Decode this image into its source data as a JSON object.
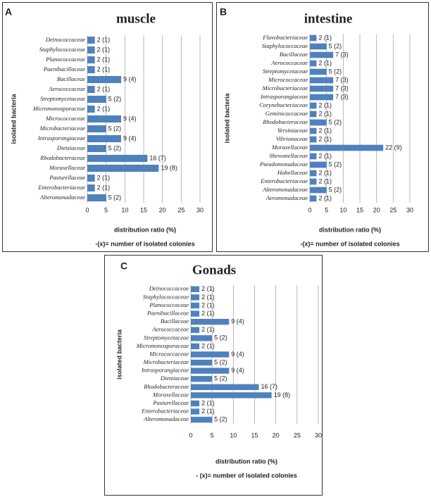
{
  "chart_data": [
    {
      "type": "hbar",
      "panel": "A",
      "title": "muscle",
      "ylabel": "isolated bacteria",
      "xlabel": "distribution ratio (%)",
      "footnote": "-(x)= number of isolated colonies",
      "categories": [
        "Deinococcaceae",
        "Staphylococcaceae",
        "Planococcaceae",
        "Paenibacillaceae",
        "Bacillaceae",
        "Aerococcaceae",
        "Streptomycetaceae",
        "Micromonosporaceae",
        "Micrococcaceae",
        "Microbacteriaceae",
        "Intrasporangiaceae",
        "Dietziaceae",
        "Rhodobacteraceae",
        "Moraxellaceae",
        "Pasturellaceae",
        "Enterobacteriaceae",
        "Alteromonadaceae"
      ],
      "values": [
        2,
        2,
        2,
        2,
        9,
        2,
        5,
        2,
        9,
        5,
        9,
        5,
        16,
        19,
        2,
        2,
        5
      ],
      "value_labels": [
        "2 (1)",
        "2 (1)",
        "2 (1)",
        "2 (1)",
        "9 (4)",
        "2 (1)",
        "5 (2)",
        "2 (1)",
        "9 (4)",
        "5 (2)",
        "9 (4)",
        "5 (2)",
        "16 (7)",
        "19 (8)",
        "2 (1)",
        "2 (1)",
        "5 (2)"
      ],
      "color": "#4f81bd",
      "xlim": [
        0,
        30
      ],
      "xticks": [
        0,
        5,
        10,
        15,
        20,
        25,
        30
      ],
      "grid": true
    },
    {
      "type": "hbar",
      "panel": "B",
      "title": "intestine",
      "ylabel": "isolated bacteria",
      "xlabel": "distribution ratio (%)",
      "footnote": "-(x)= number of isolated colonies",
      "categories": [
        "Flavobacteriaceae",
        "Staphylococcaceae",
        "Bacillaceae",
        "Aerococcaceae",
        "Streptomycetaceae",
        "Micrococcaceae",
        "Microbacteriaceae",
        "Intrasporangiaceae",
        "Corynebacteriaceae",
        "Geminicoccaceae",
        "Rhodobacteraceae",
        "Yersiniaceae",
        "Vibrionaceae",
        "Moraxellaceae",
        "Shewanellaceae",
        "Pseudomonadaceae",
        "Hahellaceae",
        "Enterobacteriaceae",
        "Alteromonadaceae",
        "Aeromonadaceae"
      ],
      "values": [
        2,
        5,
        7,
        2,
        5,
        7,
        7,
        7,
        2,
        2,
        5,
        2,
        2,
        22,
        2,
        5,
        2,
        2,
        5,
        2
      ],
      "value_labels": [
        "2 (1)",
        "5 (2)",
        "7 (3)",
        "2 (1)",
        "5 (2)",
        "7 (3)",
        "7 (3)",
        "7 (3)",
        "2 (1)",
        "2 (1)",
        "5 (2)",
        "2 (1)",
        "2 (1)",
        "22 (9)",
        "2 (1)",
        "5 (2)",
        "2 (1)",
        "2 (1)",
        "5 (2)",
        "2 (1)"
      ],
      "color": "#4f81bd",
      "xlim": [
        0,
        30
      ],
      "xticks": [
        0,
        5,
        10,
        15,
        20,
        25,
        30
      ],
      "grid": true
    },
    {
      "type": "hbar",
      "panel": "C",
      "title": "Gonads",
      "ylabel": "isolated bacteria",
      "xlabel": "distribution ratio (%)",
      "footnote": "- (x)= number of isolated colonies",
      "categories": [
        "Deinococcaceae",
        "Staphylococcaceae",
        "Planococcaceae",
        "Paenibacillaceae",
        "Bacillaceae",
        "Aerococcaceae",
        "Streptomycetaceae",
        "Micromonosporaceae",
        "Micrococcaceae",
        "Microbacteriaceae",
        "Intrasporangiaceae",
        "Dietziaceae",
        "Rhodobacteraceae",
        "Moraxellaceae",
        "Pasturellaceae",
        "Enterobacteriaceae",
        "Alteromonadaceae"
      ],
      "values": [
        2,
        2,
        2,
        2,
        9,
        2,
        5,
        2,
        9,
        5,
        9,
        5,
        16,
        19,
        2,
        2,
        5
      ],
      "value_labels": [
        "2 (1)",
        "2 (1)",
        "2 (1)",
        "2 (1)",
        "9 (4)",
        "2 (1)",
        "5 (2)",
        "2 (1)",
        "9 (4)",
        "5 (2)",
        "9 (4)",
        "5 (2)",
        "16 (7)",
        "19 (8)",
        "2 (1)",
        "2 (1)",
        "5 (2)"
      ],
      "color": "#4f81bd",
      "xlim": [
        0,
        30
      ],
      "xticks": [
        0,
        5,
        10,
        15,
        20,
        25,
        30
      ],
      "grid": true
    }
  ]
}
